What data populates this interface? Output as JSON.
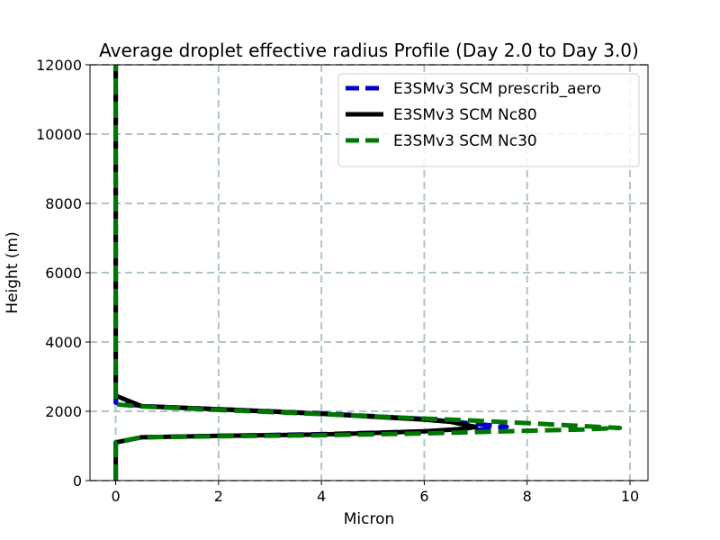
{
  "chart_data": {
    "type": "line",
    "title": "Average droplet effective radius Profile (Day 2.0 to Day 3.0)",
    "xlabel": "Micron",
    "ylabel": "Height (m)",
    "xlim": [
      -0.5,
      10.35
    ],
    "ylim": [
      0,
      12000
    ],
    "xticks": [
      0,
      2,
      4,
      6,
      8,
      10
    ],
    "yticks": [
      0,
      2000,
      4000,
      6000,
      8000,
      10000,
      12000
    ],
    "grid": true,
    "legend_position": "top-right",
    "series": [
      {
        "name": "E3SMv3 SCM prescrib_aero",
        "color": "#0000cc",
        "style": "dashed",
        "points": [
          [
            0,
            0
          ],
          [
            0,
            1100
          ],
          [
            0.5,
            1250
          ],
          [
            2,
            1290
          ],
          [
            4,
            1340
          ],
          [
            6,
            1420
          ],
          [
            7,
            1460
          ],
          [
            7.6,
            1550
          ],
          [
            6,
            1780
          ],
          [
            4,
            1940
          ],
          [
            2,
            2060
          ],
          [
            0.5,
            2150
          ],
          [
            0,
            2250
          ],
          [
            0,
            12000
          ]
        ]
      },
      {
        "name": "E3SMv3 SCM Nc80",
        "color": "#000000",
        "style": "solid",
        "points": [
          [
            0,
            0
          ],
          [
            0,
            1100
          ],
          [
            0.5,
            1250
          ],
          [
            2,
            1290
          ],
          [
            4,
            1330
          ],
          [
            6,
            1420
          ],
          [
            6.8,
            1500
          ],
          [
            7,
            1550
          ],
          [
            6.5,
            1700
          ],
          [
            6,
            1760
          ],
          [
            4,
            1930
          ],
          [
            2,
            2060
          ],
          [
            0.5,
            2150
          ],
          [
            0,
            2450
          ],
          [
            0,
            12000
          ]
        ]
      },
      {
        "name": "E3SMv3 SCM Nc30",
        "color": "#007700",
        "style": "dashed",
        "points": [
          [
            0,
            0
          ],
          [
            0,
            1100
          ],
          [
            0.5,
            1250
          ],
          [
            2,
            1280
          ],
          [
            4,
            1310
          ],
          [
            6,
            1360
          ],
          [
            7,
            1400
          ],
          [
            8,
            1440
          ],
          [
            9,
            1470
          ],
          [
            9.8,
            1520
          ],
          [
            9,
            1580
          ],
          [
            8,
            1660
          ],
          [
            7,
            1730
          ],
          [
            6,
            1790
          ],
          [
            4,
            1920
          ],
          [
            2,
            2040
          ],
          [
            0.5,
            2140
          ],
          [
            0,
            2200
          ],
          [
            0,
            12000
          ]
        ]
      }
    ]
  }
}
